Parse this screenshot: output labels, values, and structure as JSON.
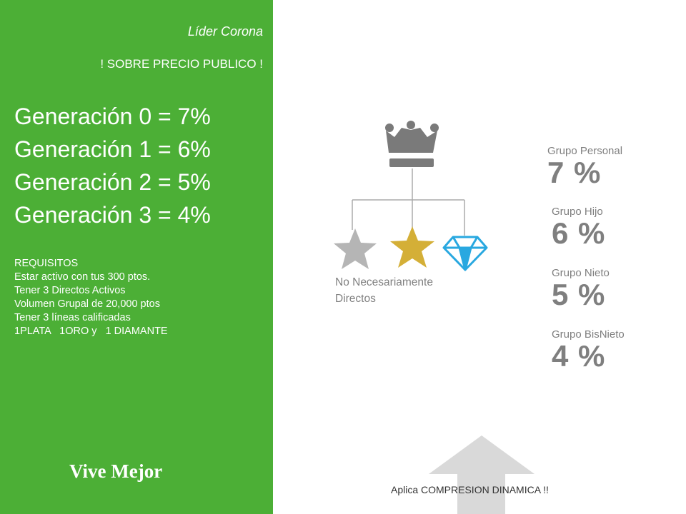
{
  "left": {
    "leader_title": "Líder Corona",
    "price_note": "! SOBRE PRECIO PUBLICO !",
    "generations": [
      "Generación  0 = 7%",
      "Generación  1 = 6%",
      "Generación  2 = 5%",
      "Generación  3 = 4%"
    ],
    "requirements_title": "REQUISITOS",
    "requirements": [
      "Estar activo con tus 300 ptos.",
      "Tener 3 Directos Activos",
      "Volumen Grupal de 20,000 ptos",
      "Tener 3 líneas calificadas",
      "1PLATA   1ORO y   1 DIAMANTE"
    ],
    "slogan": "Vive Mejor"
  },
  "right": {
    "groups": [
      {
        "label": "Grupo Personal",
        "percent": "7 %"
      },
      {
        "label": "Grupo Hijo",
        "percent": "6 %"
      },
      {
        "label": "Grupo Nieto",
        "percent": "5 %"
      },
      {
        "label": "Grupo BisNieto",
        "percent": "4 %"
      }
    ],
    "note_line1": "No Necesariamente",
    "note_line2": "Directos",
    "compression": "Aplica COMPRESION DINAMICA !!"
  },
  "icons": [
    "crown-icon",
    "silver-star-icon",
    "gold-star-icon",
    "diamond-icon",
    "up-arrow-icon"
  ],
  "colors": {
    "panel_green": "#4caf36",
    "text_gray": "#7f7f7f",
    "crown_gray": "#7a7a7a",
    "silver": "#b5b5b5",
    "gold": "#d4af37",
    "diamond": "#29a8e0",
    "arrow_gray": "#d9d9d9"
  }
}
